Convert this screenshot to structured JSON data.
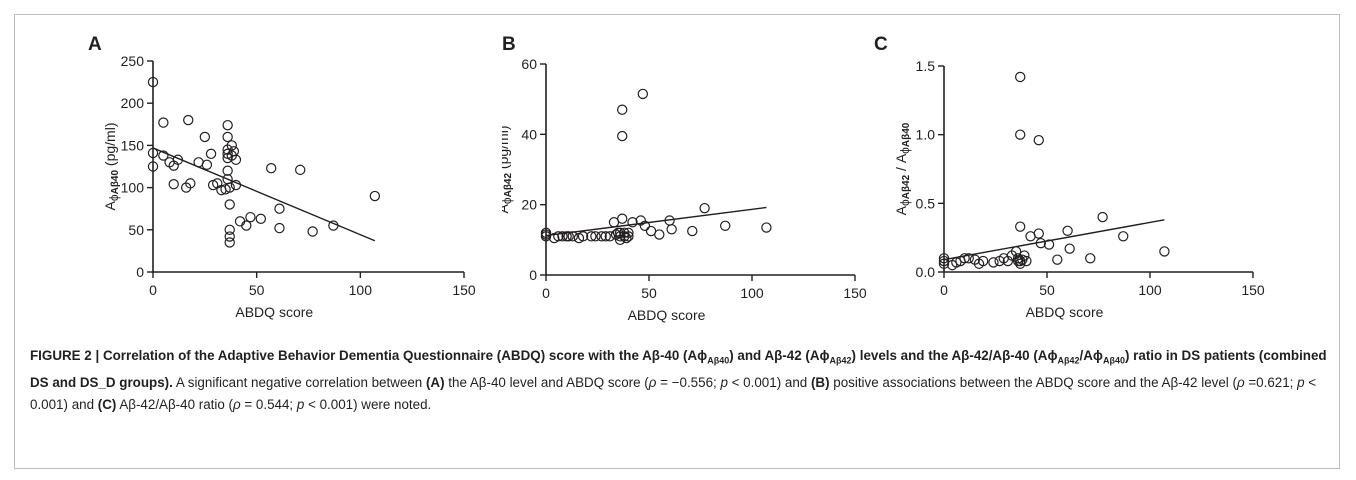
{
  "chart_data": [
    {
      "type": "scatter",
      "panel_label": "A",
      "xlabel": "ABDQ score",
      "ylabel_parts": [
        "A",
        "ϕ",
        "Aβ40",
        " (pg/ml)"
      ],
      "xlim": [
        0,
        150
      ],
      "ylim": [
        0,
        250
      ],
      "xticks": [
        "0",
        "50",
        "100",
        "150"
      ],
      "yticks": [
        "0",
        "50",
        "100",
        "150",
        "200",
        "250"
      ],
      "points": [
        [
          0,
          225
        ],
        [
          0,
          141
        ],
        [
          0,
          125
        ],
        [
          5,
          177
        ],
        [
          5,
          138
        ],
        [
          8,
          130
        ],
        [
          10,
          104
        ],
        [
          10,
          126
        ],
        [
          12,
          133
        ],
        [
          16,
          100
        ],
        [
          17,
          180
        ],
        [
          18,
          105
        ],
        [
          22,
          130
        ],
        [
          25,
          160
        ],
        [
          26,
          127
        ],
        [
          28,
          140
        ],
        [
          29,
          103
        ],
        [
          31,
          105
        ],
        [
          33,
          97
        ],
        [
          35,
          98
        ],
        [
          36,
          174
        ],
        [
          36,
          160
        ],
        [
          36,
          145
        ],
        [
          36,
          140
        ],
        [
          36,
          135
        ],
        [
          36,
          120
        ],
        [
          36,
          110
        ],
        [
          37,
          100
        ],
        [
          37,
          80
        ],
        [
          37,
          50
        ],
        [
          37,
          42
        ],
        [
          37,
          35
        ],
        [
          38,
          150
        ],
        [
          38,
          138
        ],
        [
          39,
          143
        ],
        [
          40,
          133
        ],
        [
          40,
          103
        ],
        [
          42,
          60
        ],
        [
          45,
          55
        ],
        [
          47,
          65
        ],
        [
          52,
          63
        ],
        [
          57,
          123
        ],
        [
          61,
          75
        ],
        [
          61,
          52
        ],
        [
          71,
          121
        ],
        [
          77,
          48
        ],
        [
          87,
          55
        ],
        [
          107,
          90
        ]
      ],
      "trend": {
        "x": [
          0,
          107
        ],
        "y": [
          147,
          37
        ]
      }
    },
    {
      "type": "scatter",
      "panel_label": "B",
      "xlabel": "ABDQ score",
      "ylabel_parts": [
        "A",
        "ϕ",
        "Aβ42",
        " (pg/ml)"
      ],
      "xlim": [
        0,
        150
      ],
      "ylim": [
        0,
        60
      ],
      "xticks": [
        "0",
        "50",
        "100",
        "150"
      ],
      "yticks": [
        "0",
        "20",
        "40",
        "60"
      ],
      "points": [
        [
          0,
          11
        ],
        [
          0,
          12
        ],
        [
          0,
          11.5
        ],
        [
          4,
          10.5
        ],
        [
          6,
          11
        ],
        [
          8,
          11
        ],
        [
          10,
          11
        ],
        [
          11,
          11
        ],
        [
          13,
          11
        ],
        [
          16,
          10.5
        ],
        [
          18,
          11
        ],
        [
          22,
          11
        ],
        [
          24,
          11
        ],
        [
          27,
          11
        ],
        [
          29,
          11
        ],
        [
          31,
          11
        ],
        [
          33,
          15
        ],
        [
          34,
          11.5
        ],
        [
          35,
          12
        ],
        [
          36,
          12
        ],
        [
          36,
          11
        ],
        [
          36,
          10
        ],
        [
          37,
          16
        ],
        [
          37,
          47
        ],
        [
          37,
          39.5
        ],
        [
          38,
          12
        ],
        [
          38,
          11
        ],
        [
          39,
          10.5
        ],
        [
          40,
          11
        ],
        [
          40,
          12
        ],
        [
          42,
          15
        ],
        [
          46,
          15.5
        ],
        [
          47,
          51.5
        ],
        [
          48,
          14
        ],
        [
          51,
          12.5
        ],
        [
          55,
          11.5
        ],
        [
          60,
          15.5
        ],
        [
          61,
          13
        ],
        [
          71,
          12.5
        ],
        [
          77,
          19
        ],
        [
          87,
          14
        ],
        [
          107,
          13.5
        ]
      ],
      "trend": {
        "x": [
          0,
          107
        ],
        "y": [
          11.2,
          19.2
        ]
      }
    },
    {
      "type": "scatter",
      "panel_label": "C",
      "xlabel": "ABDQ score",
      "ylabel_parts": [
        "A",
        "ϕ",
        "Aβ42",
        " / A",
        "ϕ",
        "Aβ40"
      ],
      "xlim": [
        0,
        150
      ],
      "ylim": [
        0,
        1.5
      ],
      "xticks": [
        "0",
        "50",
        "100",
        "150"
      ],
      "yticks": [
        "0.0",
        "0.5",
        "1.0",
        "1.5"
      ],
      "points": [
        [
          0,
          0.08
        ],
        [
          0,
          0.06
        ],
        [
          0,
          0.1
        ],
        [
          4,
          0.05
        ],
        [
          6,
          0.07
        ],
        [
          8,
          0.08
        ],
        [
          10,
          0.1
        ],
        [
          12,
          0.1
        ],
        [
          15,
          0.09
        ],
        [
          17,
          0.06
        ],
        [
          19,
          0.08
        ],
        [
          24,
          0.07
        ],
        [
          27,
          0.08
        ],
        [
          29,
          0.1
        ],
        [
          31,
          0.08
        ],
        [
          33,
          0.12
        ],
        [
          35,
          0.15
        ],
        [
          36,
          0.08
        ],
        [
          36,
          0.1
        ],
        [
          37,
          0.06
        ],
        [
          37,
          0.08
        ],
        [
          37,
          1.42
        ],
        [
          37,
          1.0
        ],
        [
          37,
          0.33
        ],
        [
          38,
          0.09
        ],
        [
          39,
          0.12
        ],
        [
          40,
          0.08
        ],
        [
          42,
          0.26
        ],
        [
          46,
          0.28
        ],
        [
          46,
          0.96
        ],
        [
          47,
          0.21
        ],
        [
          51,
          0.2
        ],
        [
          55,
          0.09
        ],
        [
          60,
          0.3
        ],
        [
          61,
          0.17
        ],
        [
          71,
          0.1
        ],
        [
          77,
          0.4
        ],
        [
          87,
          0.26
        ],
        [
          107,
          0.15
        ]
      ],
      "trend": {
        "x": [
          0,
          107
        ],
        "y": [
          0.09,
          0.38
        ]
      }
    }
  ],
  "caption": {
    "runs": [
      {
        "t": "FIGURE 2 | Correlation of the Adaptive Behavior Dementia Questionnaire (ABDQ) score with the Aβ-40 (Aϕ",
        "s": "b"
      },
      {
        "t": "Aβ40",
        "s": "bsub"
      },
      {
        "t": ") and Aβ-42 (Aϕ",
        "s": "b"
      },
      {
        "t": "Aβ42",
        "s": "bsub"
      },
      {
        "t": ") levels and the Aβ-42/Aβ-40 (Aϕ",
        "s": "b"
      },
      {
        "t": "Aβ42",
        "s": "bsub"
      },
      {
        "t": "/Aϕ",
        "s": "b"
      },
      {
        "t": "Aβ40",
        "s": "bsub"
      },
      {
        "t": ") ratio in DS patients (combined DS and DS_D groups).",
        "s": "b"
      },
      {
        "t": " A significant negative correlation between ",
        "s": ""
      },
      {
        "t": "(A)",
        "s": "b"
      },
      {
        "t": " the Aβ-40 level and ABDQ score (",
        "s": ""
      },
      {
        "t": "ρ",
        "s": "i"
      },
      {
        "t": " = −0.556; ",
        "s": ""
      },
      {
        "t": "p",
        "s": "i"
      },
      {
        "t": " < 0.001) and ",
        "s": ""
      },
      {
        "t": "(B)",
        "s": "b"
      },
      {
        "t": " positive associations between the ABDQ score and the Aβ-42 level (",
        "s": ""
      },
      {
        "t": "ρ",
        "s": "i"
      },
      {
        "t": " =0.621; ",
        "s": ""
      },
      {
        "t": "p",
        "s": "i"
      },
      {
        "t": " < 0.001) and ",
        "s": ""
      },
      {
        "t": "(C)",
        "s": "b"
      },
      {
        "t": " Aβ-42/Aβ-40 ratio (",
        "s": ""
      },
      {
        "t": "ρ",
        "s": "i"
      },
      {
        "t": " = 0.544; ",
        "s": ""
      },
      {
        "t": "p",
        "s": "i"
      },
      {
        "t": " < 0.001) were noted.",
        "s": ""
      }
    ]
  },
  "colors": {
    "ink": "#231f20",
    "frame": "#bdbdbd"
  }
}
